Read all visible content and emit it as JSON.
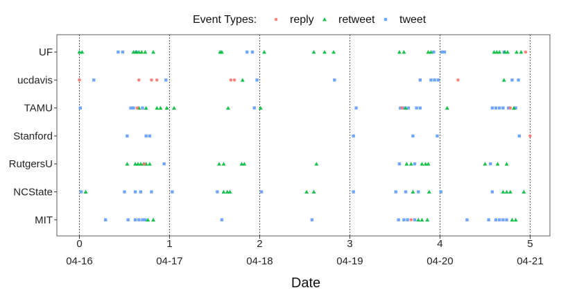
{
  "chart_data": {
    "type": "scatter",
    "title": "",
    "xlabel": "Date",
    "ylabel": "",
    "xlim": [
      -0.25,
      5.22
    ],
    "x_ticks_numeric": [
      "0",
      "1",
      "2",
      "3",
      "4",
      "5"
    ],
    "x_ticks_dates": [
      "04-16",
      "04-17",
      "04-18",
      "04-19",
      "04-20",
      "04-21"
    ],
    "reference_lines_x": [
      0,
      1,
      2,
      3,
      4,
      5
    ],
    "grid": false,
    "legend": {
      "title": "Event Types:",
      "position": "top",
      "entries": [
        "reply",
        "retweet",
        "tweet"
      ]
    },
    "categories": [
      "UF",
      "ucdavis",
      "TAMU",
      "Stanford",
      "RutgersU",
      "NCState",
      "MIT"
    ],
    "series": [
      {
        "name": "reply",
        "color": "#F8766D",
        "marker": "circle",
        "points": [
          {
            "cat": "ucdavis",
            "x": 0.0
          },
          {
            "cat": "ucdavis",
            "x": 0.66
          },
          {
            "cat": "ucdavis",
            "x": 0.8
          },
          {
            "cat": "ucdavis",
            "x": 0.86
          },
          {
            "cat": "ucdavis",
            "x": 1.68
          },
          {
            "cat": "ucdavis",
            "x": 1.72
          },
          {
            "cat": "ucdavis",
            "x": 4.2
          },
          {
            "cat": "TAMU",
            "x": 0.64
          },
          {
            "cat": "TAMU",
            "x": 3.58
          },
          {
            "cat": "TAMU",
            "x": 4.78
          },
          {
            "cat": "RutgersU",
            "x": 0.72
          },
          {
            "cat": "Stanford",
            "x": 5.0
          },
          {
            "cat": "UF",
            "x": 4.95
          },
          {
            "cat": "MIT",
            "x": 3.68
          }
        ]
      },
      {
        "name": "retweet",
        "color": "#00BA38",
        "marker": "triangle",
        "points": [
          {
            "cat": "UF",
            "x": 0.0
          },
          {
            "cat": "UF",
            "x": 0.03
          },
          {
            "cat": "UF",
            "x": 0.6
          },
          {
            "cat": "UF",
            "x": 0.63
          },
          {
            "cat": "UF",
            "x": 0.66
          },
          {
            "cat": "UF",
            "x": 0.69
          },
          {
            "cat": "UF",
            "x": 0.73
          },
          {
            "cat": "UF",
            "x": 0.82
          },
          {
            "cat": "UF",
            "x": 1.56
          },
          {
            "cat": "UF",
            "x": 1.58
          },
          {
            "cat": "UF",
            "x": 2.05
          },
          {
            "cat": "UF",
            "x": 2.6
          },
          {
            "cat": "UF",
            "x": 2.72
          },
          {
            "cat": "UF",
            "x": 2.82
          },
          {
            "cat": "UF",
            "x": 3.55
          },
          {
            "cat": "UF",
            "x": 3.6
          },
          {
            "cat": "UF",
            "x": 3.87
          },
          {
            "cat": "UF",
            "x": 3.9
          },
          {
            "cat": "UF",
            "x": 4.6
          },
          {
            "cat": "UF",
            "x": 4.63
          },
          {
            "cat": "UF",
            "x": 4.66
          },
          {
            "cat": "UF",
            "x": 4.72
          },
          {
            "cat": "UF",
            "x": 4.75
          },
          {
            "cat": "UF",
            "x": 4.85
          },
          {
            "cat": "UF",
            "x": 4.9
          },
          {
            "cat": "ucdavis",
            "x": 1.81
          },
          {
            "cat": "ucdavis",
            "x": 4.71
          },
          {
            "cat": "TAMU",
            "x": 0.66
          },
          {
            "cat": "TAMU",
            "x": 0.74
          },
          {
            "cat": "TAMU",
            "x": 0.86
          },
          {
            "cat": "TAMU",
            "x": 0.9
          },
          {
            "cat": "TAMU",
            "x": 0.97
          },
          {
            "cat": "TAMU",
            "x": 1.05
          },
          {
            "cat": "TAMU",
            "x": 1.65
          },
          {
            "cat": "TAMU",
            "x": 2.01
          },
          {
            "cat": "TAMU",
            "x": 3.62
          },
          {
            "cat": "TAMU",
            "x": 4.08
          },
          {
            "cat": "TAMU",
            "x": 4.82
          },
          {
            "cat": "RutgersU",
            "x": 0.53
          },
          {
            "cat": "RutgersU",
            "x": 0.62
          },
          {
            "cat": "RutgersU",
            "x": 0.65
          },
          {
            "cat": "RutgersU",
            "x": 0.68
          },
          {
            "cat": "RutgersU",
            "x": 0.71
          },
          {
            "cat": "RutgersU",
            "x": 0.74
          },
          {
            "cat": "RutgersU",
            "x": 0.78
          },
          {
            "cat": "RutgersU",
            "x": 1.55
          },
          {
            "cat": "RutgersU",
            "x": 1.6
          },
          {
            "cat": "RutgersU",
            "x": 1.8
          },
          {
            "cat": "RutgersU",
            "x": 1.83
          },
          {
            "cat": "RutgersU",
            "x": 2.63
          },
          {
            "cat": "RutgersU",
            "x": 3.63
          },
          {
            "cat": "RutgersU",
            "x": 3.68
          },
          {
            "cat": "RutgersU",
            "x": 3.8
          },
          {
            "cat": "RutgersU",
            "x": 3.84
          },
          {
            "cat": "RutgersU",
            "x": 3.87
          },
          {
            "cat": "RutgersU",
            "x": 4.5
          },
          {
            "cat": "RutgersU",
            "x": 4.64
          },
          {
            "cat": "RutgersU",
            "x": 4.74
          },
          {
            "cat": "NCState",
            "x": 0.07
          },
          {
            "cat": "NCState",
            "x": 1.6
          },
          {
            "cat": "NCState",
            "x": 1.64
          },
          {
            "cat": "NCState",
            "x": 1.67
          },
          {
            "cat": "NCState",
            "x": 2.52
          },
          {
            "cat": "NCState",
            "x": 2.6
          },
          {
            "cat": "NCState",
            "x": 3.7
          },
          {
            "cat": "NCState",
            "x": 3.88
          },
          {
            "cat": "NCState",
            "x": 4.7
          },
          {
            "cat": "NCState",
            "x": 4.74
          },
          {
            "cat": "NCState",
            "x": 4.78
          },
          {
            "cat": "NCState",
            "x": 4.93
          },
          {
            "cat": "MIT",
            "x": 0.76
          },
          {
            "cat": "MIT",
            "x": 0.82
          },
          {
            "cat": "MIT",
            "x": 3.76
          },
          {
            "cat": "MIT",
            "x": 3.8
          },
          {
            "cat": "MIT",
            "x": 3.86
          },
          {
            "cat": "MIT",
            "x": 4.8
          },
          {
            "cat": "MIT",
            "x": 4.84
          }
        ]
      },
      {
        "name": "tweet",
        "color": "#619CFF",
        "marker": "square",
        "points": [
          {
            "cat": "UF",
            "x": 0.43
          },
          {
            "cat": "UF",
            "x": 0.48
          },
          {
            "cat": "UF",
            "x": 0.63
          },
          {
            "cat": "UF",
            "x": 1.86
          },
          {
            "cat": "UF",
            "x": 1.92
          },
          {
            "cat": "UF",
            "x": 3.93
          },
          {
            "cat": "UF",
            "x": 4.02
          },
          {
            "cat": "UF",
            "x": 4.05
          },
          {
            "cat": "UF",
            "x": 4.71
          },
          {
            "cat": "ucdavis",
            "x": 0.16
          },
          {
            "cat": "ucdavis",
            "x": 0.96
          },
          {
            "cat": "ucdavis",
            "x": 1.97
          },
          {
            "cat": "ucdavis",
            "x": 2.83
          },
          {
            "cat": "ucdavis",
            "x": 3.78
          },
          {
            "cat": "ucdavis",
            "x": 3.9
          },
          {
            "cat": "ucdavis",
            "x": 3.94
          },
          {
            "cat": "ucdavis",
            "x": 3.98
          },
          {
            "cat": "ucdavis",
            "x": 4.8
          },
          {
            "cat": "ucdavis",
            "x": 4.87
          },
          {
            "cat": "TAMU",
            "x": 0.01
          },
          {
            "cat": "TAMU",
            "x": 0.57
          },
          {
            "cat": "TAMU",
            "x": 0.6
          },
          {
            "cat": "TAMU",
            "x": 0.7
          },
          {
            "cat": "TAMU",
            "x": 1.94
          },
          {
            "cat": "TAMU",
            "x": 3.07
          },
          {
            "cat": "TAMU",
            "x": 3.56
          },
          {
            "cat": "TAMU",
            "x": 3.6
          },
          {
            "cat": "TAMU",
            "x": 3.65
          },
          {
            "cat": "TAMU",
            "x": 3.74
          },
          {
            "cat": "TAMU",
            "x": 3.78
          },
          {
            "cat": "TAMU",
            "x": 4.58
          },
          {
            "cat": "TAMU",
            "x": 4.62
          },
          {
            "cat": "TAMU",
            "x": 4.66
          },
          {
            "cat": "TAMU",
            "x": 4.7
          },
          {
            "cat": "TAMU",
            "x": 4.76
          },
          {
            "cat": "TAMU",
            "x": 4.84
          },
          {
            "cat": "Stanford",
            "x": 0.53
          },
          {
            "cat": "Stanford",
            "x": 0.74
          },
          {
            "cat": "Stanford",
            "x": 0.78
          },
          {
            "cat": "Stanford",
            "x": 3.04
          },
          {
            "cat": "Stanford",
            "x": 3.7
          },
          {
            "cat": "Stanford",
            "x": 3.97
          },
          {
            "cat": "Stanford",
            "x": 4.88
          },
          {
            "cat": "RutgersU",
            "x": 0.94
          },
          {
            "cat": "RutgersU",
            "x": 3.55
          },
          {
            "cat": "RutgersU",
            "x": 3.72
          },
          {
            "cat": "RutgersU",
            "x": 4.56
          },
          {
            "cat": "NCState",
            "x": 0.02
          },
          {
            "cat": "NCState",
            "x": 0.5
          },
          {
            "cat": "NCState",
            "x": 0.62
          },
          {
            "cat": "NCState",
            "x": 0.68
          },
          {
            "cat": "NCState",
            "x": 0.8
          },
          {
            "cat": "NCState",
            "x": 1.03
          },
          {
            "cat": "NCState",
            "x": 1.53
          },
          {
            "cat": "NCState",
            "x": 2.02
          },
          {
            "cat": "NCState",
            "x": 3.04
          },
          {
            "cat": "NCState",
            "x": 3.51
          },
          {
            "cat": "NCState",
            "x": 3.62
          },
          {
            "cat": "NCState",
            "x": 3.76
          },
          {
            "cat": "NCState",
            "x": 4.01
          },
          {
            "cat": "NCState",
            "x": 4.58
          },
          {
            "cat": "MIT",
            "x": 0.29
          },
          {
            "cat": "MIT",
            "x": 0.54
          },
          {
            "cat": "MIT",
            "x": 0.62
          },
          {
            "cat": "MIT",
            "x": 0.66
          },
          {
            "cat": "MIT",
            "x": 0.7
          },
          {
            "cat": "MIT",
            "x": 0.73
          },
          {
            "cat": "MIT",
            "x": 1.58
          },
          {
            "cat": "MIT",
            "x": 2.58
          },
          {
            "cat": "MIT",
            "x": 3.54
          },
          {
            "cat": "MIT",
            "x": 3.6
          },
          {
            "cat": "MIT",
            "x": 3.64
          },
          {
            "cat": "MIT",
            "x": 3.72
          },
          {
            "cat": "MIT",
            "x": 4.3
          },
          {
            "cat": "MIT",
            "x": 4.54
          },
          {
            "cat": "MIT",
            "x": 4.62
          },
          {
            "cat": "MIT",
            "x": 4.66
          },
          {
            "cat": "MIT",
            "x": 4.7
          },
          {
            "cat": "MIT",
            "x": 4.74
          }
        ]
      }
    ]
  }
}
